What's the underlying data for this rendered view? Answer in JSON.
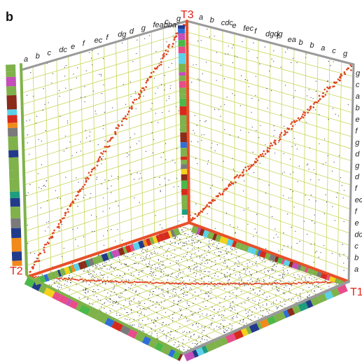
{
  "figure": {
    "panel_label": "b",
    "axes": {
      "t1": "T1",
      "t2": "T2",
      "t3": "T3"
    },
    "letters_top_left": [
      "a",
      "b",
      "c",
      "dc",
      "e",
      "f",
      "ec",
      "f",
      "dg",
      "d",
      "g",
      "feabba",
      "c",
      "g"
    ],
    "letters_top_right": [
      "a",
      "b",
      "cdc",
      "e",
      "fec",
      "f",
      "dgdg",
      "f",
      "ea",
      "b",
      "b",
      "a",
      "c",
      "g"
    ],
    "letters_right": [
      "g",
      "c",
      "a",
      "b",
      "e",
      "f",
      "g",
      "d",
      "g",
      "d",
      "f",
      "ec",
      "f",
      "e",
      "dc",
      "c",
      "b",
      "a"
    ],
    "colors": {
      "frame_red": "#e8502a",
      "frame_grey": "#9a9a9a",
      "frame_green": "#7fb24a",
      "grid_line": "#c9d65a",
      "dot_red": "#e0451f",
      "noise": "#333a55"
    },
    "block_palette": [
      "#d62a1e",
      "#2e6fd8",
      "#f3d21c",
      "#4bb84a",
      "#c44fb8",
      "#1e9e7e",
      "#f08a1b",
      "#5ad1e8",
      "#8b2b1a",
      "#7a7a7a",
      "#e84c8a",
      "#223a8a"
    ]
  }
}
